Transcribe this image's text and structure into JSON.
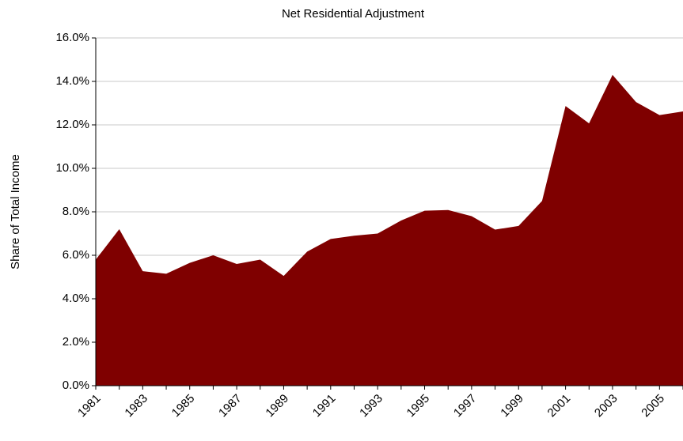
{
  "chart_data": {
    "type": "area",
    "title": "Net Residential Adjustment",
    "y_label": "Share of Total Income",
    "categories": [
      "1981",
      null,
      "1983",
      null,
      "1985",
      null,
      "1987",
      null,
      "1989",
      null,
      "1991",
      null,
      "1993",
      null,
      "1995",
      null,
      "1997",
      null,
      "1999",
      null,
      "2001",
      null,
      "2003",
      null,
      "2005",
      null
    ],
    "values": [
      5.8,
      7.2,
      5.27,
      5.15,
      5.65,
      6.0,
      5.6,
      5.8,
      5.05,
      6.17,
      6.75,
      6.9,
      7.0,
      7.6,
      8.05,
      8.08,
      7.8,
      7.18,
      7.35,
      8.5,
      12.87,
      12.07,
      14.3,
      13.05,
      12.45,
      12.62
    ],
    "color": "#7f0000",
    "ylim": [
      0,
      16
    ],
    "yticks": [
      {
        "value": 0,
        "label": "0.0%"
      },
      {
        "value": 2,
        "label": "2.0%"
      },
      {
        "value": 4,
        "label": "4.0%"
      },
      {
        "value": 6,
        "label": "6.0%"
      },
      {
        "value": 8,
        "label": "8.0%"
      },
      {
        "value": 10,
        "label": "10.0%"
      },
      {
        "value": 12,
        "label": "12.0%"
      },
      {
        "value": 14,
        "label": "14.0%"
      },
      {
        "value": 16,
        "label": "16.0%"
      }
    ],
    "grid": true
  }
}
